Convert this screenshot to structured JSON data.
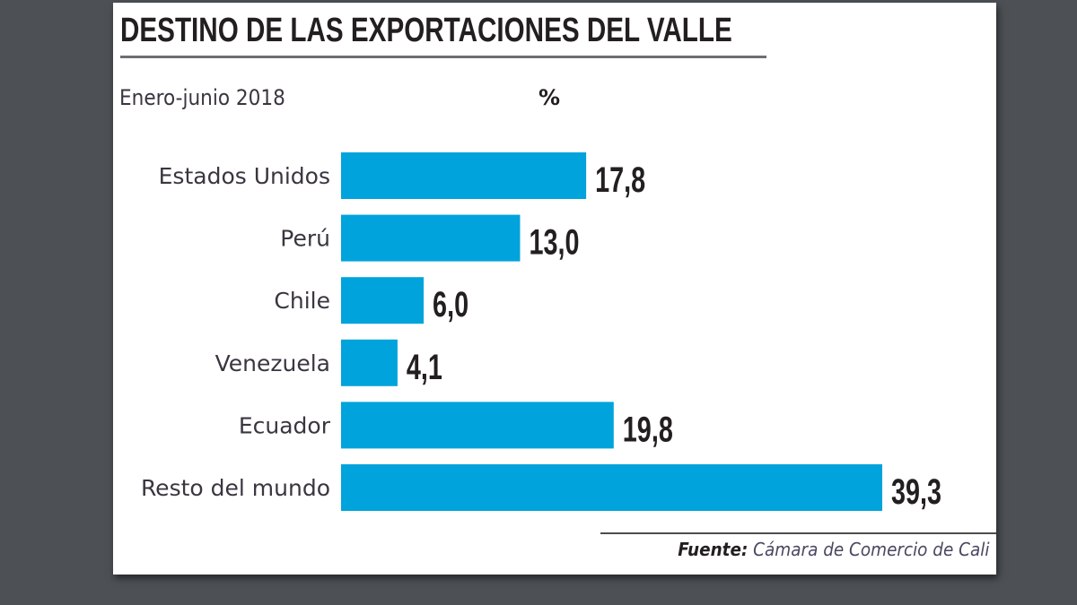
{
  "chart_data": {
    "type": "bar",
    "orientation": "horizontal",
    "title": "DESTINO DE LAS EXPORTACIONES DEL VALLE",
    "subtitle": "Enero-junio 2018",
    "unit": "%",
    "categories": [
      "Estados Unidos",
      "Perú",
      "Chile",
      "Venezuela",
      "Ecuador",
      "Resto del mundo"
    ],
    "values": [
      17.8,
      13.0,
      6.0,
      4.1,
      19.8,
      39.3
    ],
    "value_labels": [
      "17,8",
      "13,0",
      "6,0",
      "4,1",
      "19,8",
      "39,3"
    ],
    "xlim": [
      0,
      39.3
    ],
    "grid": false,
    "bar_color": "#00a3db",
    "source_label": "Fuente:",
    "source_text": "Cámara de Comercio de Cali"
  }
}
